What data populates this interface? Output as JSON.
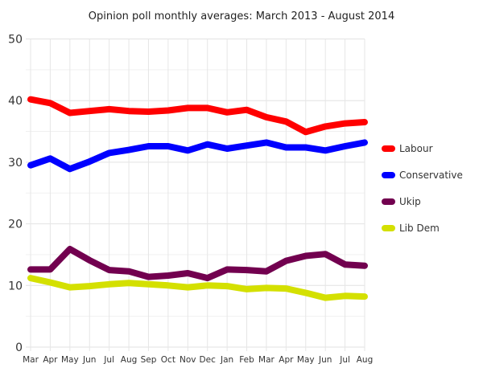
{
  "chart_data": {
    "type": "line",
    "title": "Opinion poll monthly averages: March 2013 - August 2014",
    "xlabel": "",
    "ylabel": "",
    "ylim": [
      0,
      50
    ],
    "yticks": [
      "0",
      "10",
      "20",
      "30",
      "40",
      "50"
    ],
    "grid": true,
    "legend_position": "right",
    "categories": [
      "Mar",
      "Apr",
      "May",
      "Jun",
      "Jul",
      "Aug",
      "Sep",
      "Oct",
      "Nov",
      "Dec",
      "Jan",
      "Feb",
      "Mar",
      "Apr",
      "May",
      "Jun",
      "Jul",
      "Aug"
    ],
    "series": [
      {
        "name": "Labour",
        "color": "#ff0000",
        "values": [
          40.2,
          39.6,
          38.0,
          38.3,
          38.6,
          38.3,
          38.2,
          38.4,
          38.8,
          38.8,
          38.1,
          38.5,
          37.3,
          36.6,
          34.9,
          35.8,
          36.3,
          36.5
        ]
      },
      {
        "name": "Conservative",
        "color": "#0000ff",
        "values": [
          29.5,
          30.6,
          28.9,
          30.1,
          31.5,
          32.0,
          32.6,
          32.6,
          31.9,
          32.9,
          32.2,
          32.7,
          33.2,
          32.4,
          32.4,
          31.9,
          32.6,
          33.2
        ]
      },
      {
        "name": "Ukip",
        "color": "#72004f",
        "values": [
          12.6,
          12.6,
          15.9,
          14.1,
          12.5,
          12.3,
          11.4,
          11.6,
          12.0,
          11.2,
          12.6,
          12.5,
          12.3,
          14.0,
          14.8,
          15.1,
          13.4,
          13.2
        ]
      },
      {
        "name": "Lib Dem",
        "color": "#d4e000",
        "values": [
          11.2,
          10.5,
          9.7,
          9.9,
          10.2,
          10.4,
          10.2,
          10.0,
          9.7,
          10.0,
          9.9,
          9.4,
          9.6,
          9.5,
          8.8,
          8.0,
          8.3,
          8.2
        ]
      }
    ]
  }
}
